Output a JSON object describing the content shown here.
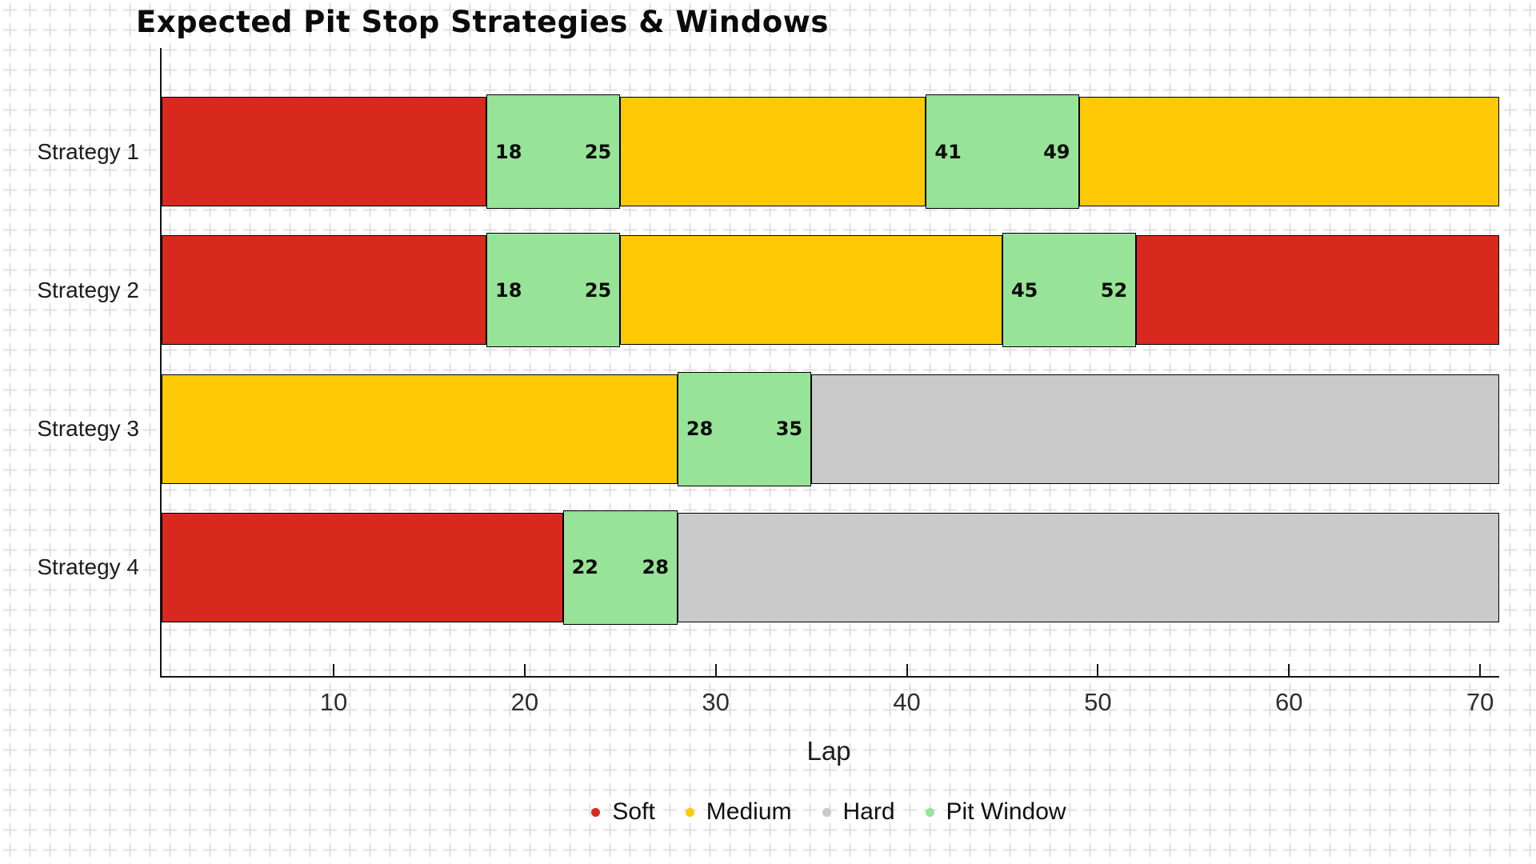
{
  "chart_data": {
    "type": "bar",
    "subtype": "horizontal-stacked-timeline",
    "title": "Expected Pit Stop Strategies & Windows",
    "xlabel": "Lap",
    "x_range": [
      1,
      71
    ],
    "x_ticks": [
      10,
      20,
      30,
      40,
      50,
      60,
      70
    ],
    "grid": false,
    "background_pattern": "plus-cross-grid",
    "axis_color": "#141414",
    "compound_colors": {
      "Soft": "#d9291e",
      "Medium": "#ffc905",
      "Hard": "#c9c9c9",
      "Pit Window": "#97e397"
    },
    "legend": {
      "position": "bottom-center",
      "items": [
        {
          "label": "Soft",
          "color": "#d9291e"
        },
        {
          "label": "Medium",
          "color": "#ffc905"
        },
        {
          "label": "Hard",
          "color": "#c9c9c9"
        },
        {
          "label": "Pit Window",
          "color": "#97e397"
        }
      ]
    },
    "strategies": [
      {
        "label": "Strategy 1",
        "segments": [
          {
            "compound": "Soft",
            "start": 1,
            "end": 18
          },
          {
            "compound": "Pit Window",
            "start": 18,
            "end": 25,
            "labels": [
              "18",
              "25"
            ]
          },
          {
            "compound": "Medium",
            "start": 25,
            "end": 41
          },
          {
            "compound": "Pit Window",
            "start": 41,
            "end": 49,
            "labels": [
              "41",
              "49"
            ]
          },
          {
            "compound": "Medium",
            "start": 49,
            "end": 71
          }
        ]
      },
      {
        "label": "Strategy 2",
        "segments": [
          {
            "compound": "Soft",
            "start": 1,
            "end": 18
          },
          {
            "compound": "Pit Window",
            "start": 18,
            "end": 25,
            "labels": [
              "18",
              "25"
            ]
          },
          {
            "compound": "Medium",
            "start": 25,
            "end": 45
          },
          {
            "compound": "Pit Window",
            "start": 45,
            "end": 52,
            "labels": [
              "45",
              "52"
            ]
          },
          {
            "compound": "Soft",
            "start": 52,
            "end": 71
          }
        ]
      },
      {
        "label": "Strategy 3",
        "segments": [
          {
            "compound": "Medium",
            "start": 1,
            "end": 28
          },
          {
            "compound": "Pit Window",
            "start": 28,
            "end": 35,
            "labels": [
              "28",
              "35"
            ]
          },
          {
            "compound": "Hard",
            "start": 35,
            "end": 71
          }
        ]
      },
      {
        "label": "Strategy 4",
        "segments": [
          {
            "compound": "Soft",
            "start": 1,
            "end": 22
          },
          {
            "compound": "Pit Window",
            "start": 22,
            "end": 28,
            "labels": [
              "22",
              "28"
            ]
          },
          {
            "compound": "Hard",
            "start": 28,
            "end": 71
          }
        ]
      }
    ]
  }
}
